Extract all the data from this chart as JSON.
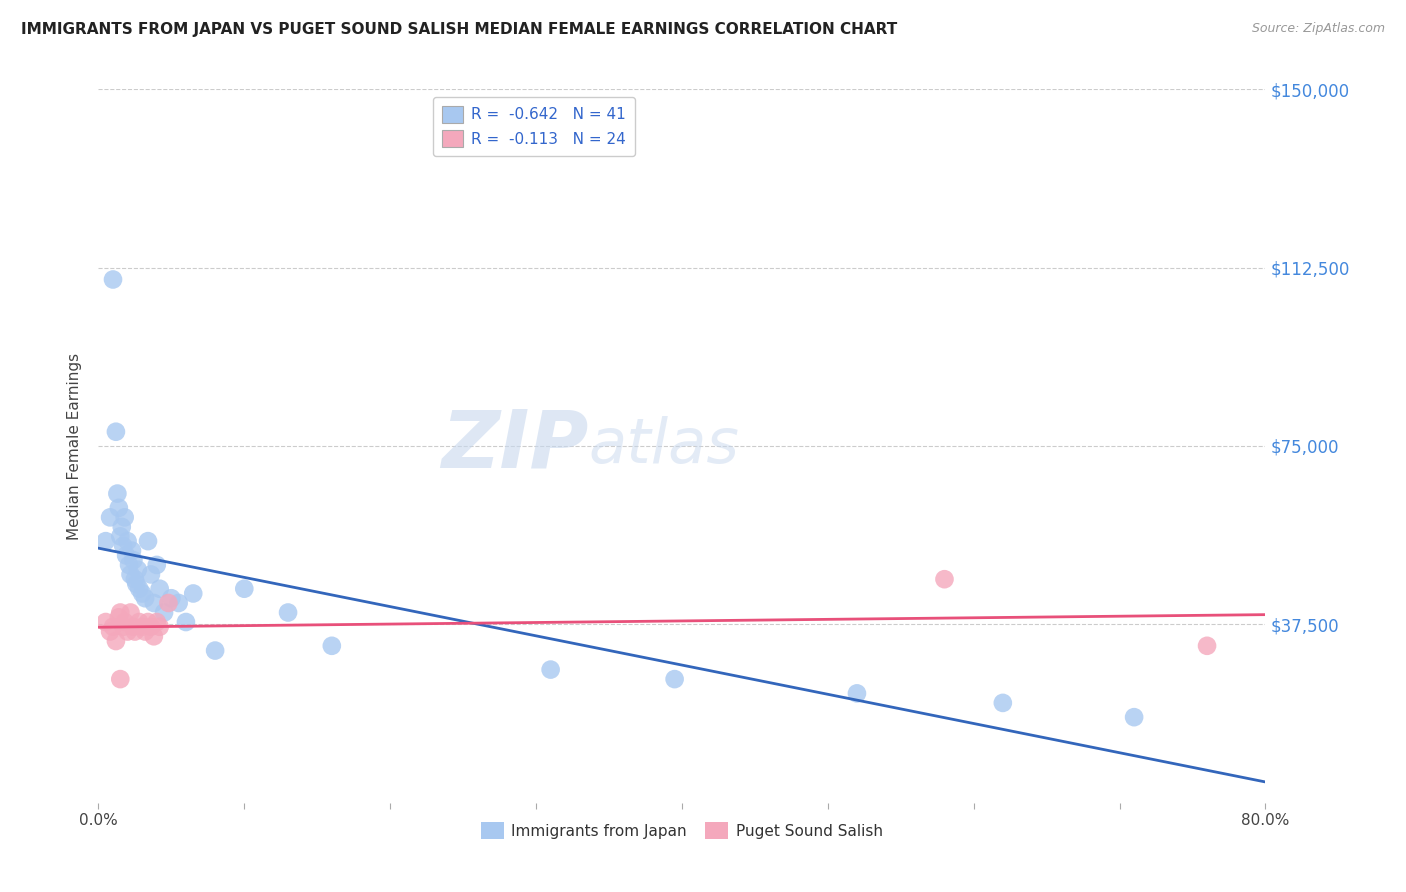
{
  "title": "IMMIGRANTS FROM JAPAN VS PUGET SOUND SALISH MEDIAN FEMALE EARNINGS CORRELATION CHART",
  "source": "Source: ZipAtlas.com",
  "ylabel": "Median Female Earnings",
  "xlim": [
    0.0,
    0.8
  ],
  "ylim": [
    0,
    150000
  ],
  "yticks": [
    37500,
    75000,
    112500,
    150000
  ],
  "ytick_labels": [
    "$37,500",
    "$75,000",
    "$112,500",
    "$150,000"
  ],
  "xticks": [
    0.0,
    0.1,
    0.2,
    0.3,
    0.4,
    0.5,
    0.6,
    0.7,
    0.8
  ],
  "xtick_labels": [
    "0.0%",
    "",
    "",
    "",
    "",
    "",
    "",
    "",
    "80.0%"
  ],
  "blue_R": -0.642,
  "blue_N": 41,
  "pink_R": -0.113,
  "pink_N": 24,
  "blue_color": "#A8C8F0",
  "pink_color": "#F4A8BC",
  "blue_line_color": "#3366BB",
  "pink_line_color": "#E8507A",
  "blue_scatter_x": [
    0.005,
    0.008,
    0.01,
    0.012,
    0.013,
    0.014,
    0.015,
    0.016,
    0.017,
    0.018,
    0.019,
    0.02,
    0.021,
    0.022,
    0.023,
    0.024,
    0.025,
    0.026,
    0.027,
    0.028,
    0.03,
    0.032,
    0.034,
    0.036,
    0.038,
    0.04,
    0.042,
    0.045,
    0.05,
    0.055,
    0.06,
    0.065,
    0.08,
    0.1,
    0.13,
    0.16,
    0.31,
    0.395,
    0.52,
    0.62,
    0.71
  ],
  "blue_scatter_y": [
    55000,
    60000,
    110000,
    78000,
    65000,
    62000,
    56000,
    58000,
    54000,
    60000,
    52000,
    55000,
    50000,
    48000,
    53000,
    51000,
    47000,
    46000,
    49000,
    45000,
    44000,
    43000,
    55000,
    48000,
    42000,
    50000,
    45000,
    40000,
    43000,
    42000,
    38000,
    44000,
    32000,
    45000,
    40000,
    33000,
    28000,
    26000,
    23000,
    21000,
    18000
  ],
  "pink_scatter_x": [
    0.005,
    0.008,
    0.01,
    0.012,
    0.014,
    0.015,
    0.017,
    0.018,
    0.02,
    0.022,
    0.024,
    0.025,
    0.028,
    0.03,
    0.032,
    0.034,
    0.036,
    0.038,
    0.04,
    0.042,
    0.015,
    0.048,
    0.58,
    0.76
  ],
  "pink_scatter_y": [
    38000,
    36000,
    37000,
    34000,
    39000,
    40000,
    37000,
    38000,
    36000,
    40000,
    37000,
    36000,
    38000,
    37000,
    36000,
    38000,
    37000,
    35000,
    38000,
    37000,
    26000,
    42000,
    47000,
    33000
  ],
  "watermark_zip": "ZIP",
  "watermark_atlas": "atlas",
  "background_color": "#FFFFFF",
  "grid_color": "#CCCCCC"
}
